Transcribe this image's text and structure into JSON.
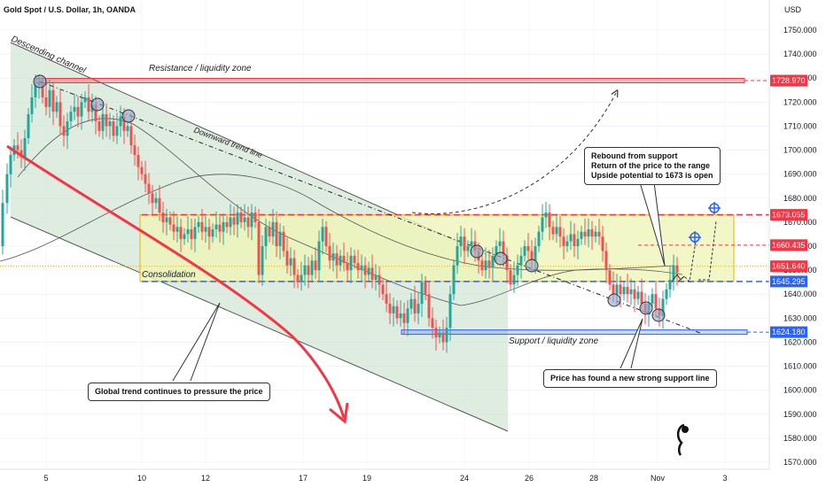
{
  "header": {
    "symbol_title": "Gold Spot / U.S. Dollar, 1h, OANDA",
    "currency": "USD"
  },
  "chart_data": {
    "type": "candlestick",
    "y_ticks": [
      1570,
      1580,
      1590,
      1600,
      1610,
      1620,
      1630,
      1640,
      1650,
      1660,
      1670,
      1680,
      1690,
      1700,
      1710,
      1720,
      1730,
      1740,
      1750
    ],
    "y_tick_labels": [
      "1570.000",
      "1580.000",
      "1590.000",
      "1600.000",
      "1610.000",
      "1620.000",
      "1630.000",
      "1640.000",
      "1650.000",
      "1660.000",
      "1670.000",
      "1680.000",
      "1690.000",
      "1700.000",
      "1710.000",
      "1720.000",
      "1730.000",
      "1740.000",
      "1750.000"
    ],
    "ylim": [
      1568,
      1760
    ],
    "x_tick_labels": [
      "5",
      "10",
      "12",
      "17",
      "19",
      "24",
      "26",
      "28",
      "Nov",
      "3"
    ],
    "levels": [
      {
        "name": "resistance",
        "value": 1728.97,
        "label": "1728.970",
        "color": "#f23645"
      },
      {
        "name": "range-top",
        "value": 1673.055,
        "label": "1673.055",
        "color": "#f23645"
      },
      {
        "name": "target",
        "value": 1660.435,
        "label": "1660.435",
        "color": "#f23645"
      },
      {
        "name": "current",
        "value": 1651.64,
        "label": "1651.640",
        "color": "#f23645"
      },
      {
        "name": "range-bottom",
        "value": 1645.295,
        "label": "1645.295",
        "color": "#2962ff"
      },
      {
        "name": "support",
        "value": 1624.18,
        "label": "1624.180",
        "color": "#2962ff"
      }
    ],
    "annotations": {
      "channel": "Descending channel",
      "resistance_zone": "Resistance / liquidity zone",
      "downtrend": "Downward trend line",
      "consolidation": "Consolidation",
      "support_zone": "Support / liquidity zone"
    },
    "notes": {
      "rebound": [
        "Rebound from support",
        "Return of the price to the range",
        "Upside potential to 1673 is open"
      ],
      "global_trend": "Global trend continues to pressure the price",
      "support_found": "Price has found a new strong support line"
    },
    "price_path": [
      [
        0,
        1660
      ],
      [
        6,
        1678
      ],
      [
        10,
        1690
      ],
      [
        14,
        1698
      ],
      [
        18,
        1702
      ],
      [
        22,
        1700
      ],
      [
        26,
        1697
      ],
      [
        30,
        1705
      ],
      [
        34,
        1715
      ],
      [
        38,
        1722
      ],
      [
        42,
        1727
      ],
      [
        46,
        1728
      ],
      [
        50,
        1722
      ],
      [
        54,
        1718
      ],
      [
        58,
        1725
      ],
      [
        62,
        1716
      ],
      [
        66,
        1720
      ],
      [
        70,
        1710
      ],
      [
        74,
        1706
      ],
      [
        78,
        1712
      ],
      [
        82,
        1716
      ],
      [
        86,
        1718
      ],
      [
        90,
        1714
      ],
      [
        94,
        1720
      ],
      [
        98,
        1722
      ],
      [
        102,
        1716
      ],
      [
        106,
        1719
      ],
      [
        110,
        1712
      ],
      [
        114,
        1708
      ],
      [
        118,
        1715
      ],
      [
        122,
        1710
      ],
      [
        126,
        1712
      ],
      [
        130,
        1706
      ],
      [
        134,
        1710
      ],
      [
        138,
        1714
      ],
      [
        142,
        1708
      ],
      [
        146,
        1710
      ],
      [
        150,
        1702
      ],
      [
        154,
        1698
      ],
      [
        158,
        1693
      ],
      [
        162,
        1690
      ],
      [
        166,
        1686
      ],
      [
        170,
        1682
      ],
      [
        174,
        1678
      ],
      [
        178,
        1680
      ],
      [
        182,
        1674
      ],
      [
        186,
        1670
      ],
      [
        190,
        1672
      ],
      [
        194,
        1669
      ],
      [
        198,
        1666
      ],
      [
        202,
        1668
      ],
      [
        206,
        1663
      ],
      [
        210,
        1665
      ],
      [
        214,
        1667
      ],
      [
        218,
        1663
      ],
      [
        222,
        1668
      ],
      [
        226,
        1670
      ],
      [
        230,
        1666
      ],
      [
        234,
        1668
      ],
      [
        238,
        1664
      ],
      [
        242,
        1667
      ],
      [
        246,
        1669
      ],
      [
        250,
        1666
      ],
      [
        254,
        1670
      ],
      [
        258,
        1668
      ],
      [
        262,
        1672
      ],
      [
        266,
        1669
      ],
      [
        270,
        1674
      ],
      [
        274,
        1670
      ],
      [
        278,
        1672
      ],
      [
        282,
        1668
      ],
      [
        286,
        1674
      ],
      [
        290,
        1670
      ],
      [
        294,
        1648
      ],
      [
        298,
        1660
      ],
      [
        302,
        1668
      ],
      [
        306,
        1664
      ],
      [
        310,
        1670
      ],
      [
        314,
        1660
      ],
      [
        318,
        1666
      ],
      [
        322,
        1658
      ],
      [
        326,
        1652
      ],
      [
        330,
        1655
      ],
      [
        334,
        1648
      ],
      [
        338,
        1645
      ],
      [
        342,
        1648
      ],
      [
        346,
        1652
      ],
      [
        350,
        1648
      ],
      [
        354,
        1654
      ],
      [
        358,
        1650
      ],
      [
        362,
        1662
      ],
      [
        366,
        1668
      ],
      [
        370,
        1660
      ],
      [
        374,
        1654
      ],
      [
        378,
        1657
      ],
      [
        382,
        1652
      ],
      [
        386,
        1656
      ],
      [
        390,
        1653
      ],
      [
        394,
        1650
      ],
      [
        398,
        1656
      ],
      [
        402,
        1653
      ],
      [
        406,
        1650
      ],
      [
        410,
        1652
      ],
      [
        414,
        1648
      ],
      [
        418,
        1651
      ],
      [
        422,
        1646
      ],
      [
        426,
        1648
      ],
      [
        430,
        1644
      ],
      [
        434,
        1640
      ],
      [
        438,
        1636
      ],
      [
        442,
        1632
      ],
      [
        446,
        1635
      ],
      [
        450,
        1630
      ],
      [
        454,
        1632
      ],
      [
        458,
        1628
      ],
      [
        462,
        1634
      ],
      [
        466,
        1638
      ],
      [
        470,
        1632
      ],
      [
        474,
        1636
      ],
      [
        478,
        1645
      ],
      [
        482,
        1640
      ],
      [
        486,
        1630
      ],
      [
        490,
        1626
      ],
      [
        494,
        1622
      ],
      [
        498,
        1624
      ],
      [
        502,
        1620
      ],
      [
        506,
        1626
      ],
      [
        510,
        1640
      ],
      [
        514,
        1652
      ],
      [
        518,
        1660
      ],
      [
        522,
        1664
      ],
      [
        526,
        1658
      ],
      [
        530,
        1660
      ],
      [
        534,
        1662
      ],
      [
        538,
        1658
      ],
      [
        542,
        1654
      ],
      [
        546,
        1650
      ],
      [
        550,
        1654
      ],
      [
        554,
        1651
      ],
      [
        558,
        1656
      ],
      [
        562,
        1660
      ],
      [
        566,
        1662
      ],
      [
        570,
        1656
      ],
      [
        574,
        1650
      ],
      [
        578,
        1644
      ],
      [
        582,
        1648
      ],
      [
        586,
        1652
      ],
      [
        590,
        1656
      ],
      [
        594,
        1660
      ],
      [
        598,
        1658
      ],
      [
        602,
        1654
      ],
      [
        606,
        1660
      ],
      [
        610,
        1666
      ],
      [
        614,
        1672
      ],
      [
        618,
        1674
      ],
      [
        622,
        1668
      ],
      [
        626,
        1665
      ],
      [
        630,
        1668
      ],
      [
        634,
        1664
      ],
      [
        638,
        1660
      ],
      [
        642,
        1662
      ],
      [
        646,
        1665
      ],
      [
        650,
        1660
      ],
      [
        654,
        1663
      ],
      [
        658,
        1666
      ],
      [
        662,
        1664
      ],
      [
        666,
        1667
      ],
      [
        670,
        1664
      ],
      [
        674,
        1666
      ],
      [
        678,
        1664
      ],
      [
        682,
        1658
      ],
      [
        686,
        1650
      ],
      [
        690,
        1644
      ],
      [
        694,
        1640
      ],
      [
        698,
        1644
      ],
      [
        702,
        1640
      ],
      [
        706,
        1643
      ],
      [
        710,
        1640
      ],
      [
        714,
        1642
      ],
      [
        718,
        1638
      ],
      [
        722,
        1641
      ],
      [
        726,
        1636
      ],
      [
        730,
        1632
      ],
      [
        734,
        1636
      ],
      [
        738,
        1640
      ],
      [
        742,
        1634
      ],
      [
        746,
        1631
      ],
      [
        750,
        1638
      ],
      [
        754,
        1642
      ],
      [
        758,
        1646
      ],
      [
        762,
        1652
      ],
      [
        766,
        1649
      ]
    ]
  }
}
